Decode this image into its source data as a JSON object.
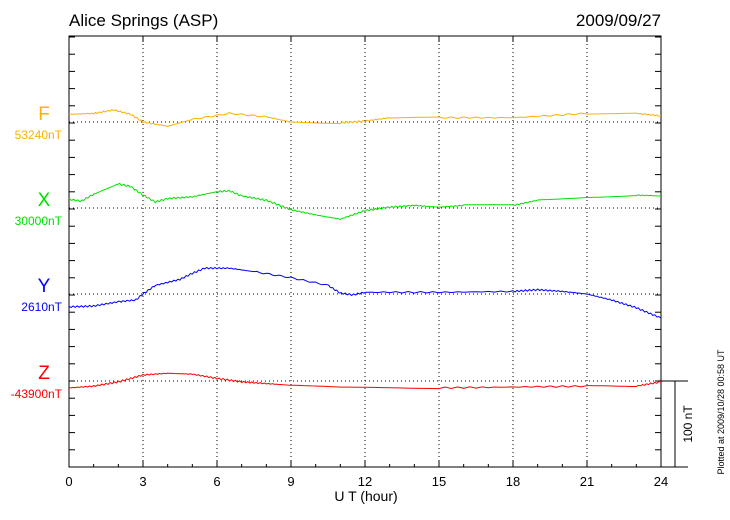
{
  "chart_data": {
    "type": "line",
    "title": "Alice Springs (ASP)",
    "date": "2009/09/27",
    "xlabel": "U T (hour)",
    "xlim": [
      0,
      24
    ],
    "xticks": [
      "0",
      "3",
      "6",
      "9",
      "12",
      "15",
      "18",
      "21",
      "24"
    ],
    "y_tick_interval_nT": 20,
    "scale_bar_label": "100 nT",
    "scale_bar_nT": 100,
    "plotted_note": "Plotted at 2009/10/28 00:58 UT",
    "grid": "dotted at each 3 h and at each series baseline",
    "series": [
      {
        "name": "F",
        "baseline_label": "53240nT",
        "baseline": 53240,
        "color": "#ffb000",
        "x": [
          0,
          1,
          1.8,
          2.5,
          3,
          4,
          5,
          6.5,
          8,
          9,
          11,
          12,
          13,
          15,
          18,
          21,
          23,
          24
        ],
        "y_offset": [
          9,
          10,
          14,
          9,
          0,
          -5,
          3,
          10,
          6,
          0,
          -1,
          1,
          5,
          5,
          5,
          10,
          10,
          7
        ]
      },
      {
        "name": "X",
        "baseline_label": "30000nT",
        "baseline": 30000,
        "color": "#00e000",
        "x": [
          0,
          0.5,
          1,
          2,
          2.5,
          3,
          3.5,
          4,
          5,
          6,
          6.5,
          7,
          8,
          9,
          10,
          11,
          12,
          13,
          14,
          15,
          16,
          18,
          19,
          21,
          23,
          24
        ],
        "y_offset": [
          10,
          8,
          16,
          28,
          25,
          15,
          7,
          11,
          13,
          19,
          20,
          14,
          9,
          -2,
          -8,
          -13,
          -3,
          1,
          3,
          1,
          3,
          3,
          9,
          13,
          15,
          14
        ]
      },
      {
        "name": "Y",
        "baseline_label": "2610nT",
        "baseline": 2610,
        "color": "#0000ff",
        "x": [
          0,
          1,
          2,
          2.7,
          3,
          3.5,
          4.5,
          5,
          5.5,
          6.5,
          7.5,
          9,
          10.5,
          11,
          11.5,
          12,
          15,
          18,
          19,
          20,
          21,
          22,
          23,
          24
        ],
        "y_offset": [
          -15,
          -14,
          -9,
          -7,
          0,
          10,
          17,
          24,
          30,
          30,
          26,
          19,
          10,
          1,
          -1,
          2,
          2,
          3,
          5,
          3,
          0,
          -7,
          -16,
          -28
        ]
      },
      {
        "name": "Z",
        "baseline_label": "-43900nT",
        "baseline": -43900,
        "color": "#ff0000",
        "x": [
          0,
          1,
          2,
          3,
          4,
          5,
          6,
          7,
          8,
          9,
          11,
          15,
          18,
          21,
          23,
          24
        ],
        "y_offset": [
          -8,
          -6,
          -1,
          7,
          9,
          8,
          3,
          -1,
          -3,
          -5,
          -8,
          -8,
          -7,
          -6,
          -6,
          -1
        ]
      }
    ]
  }
}
